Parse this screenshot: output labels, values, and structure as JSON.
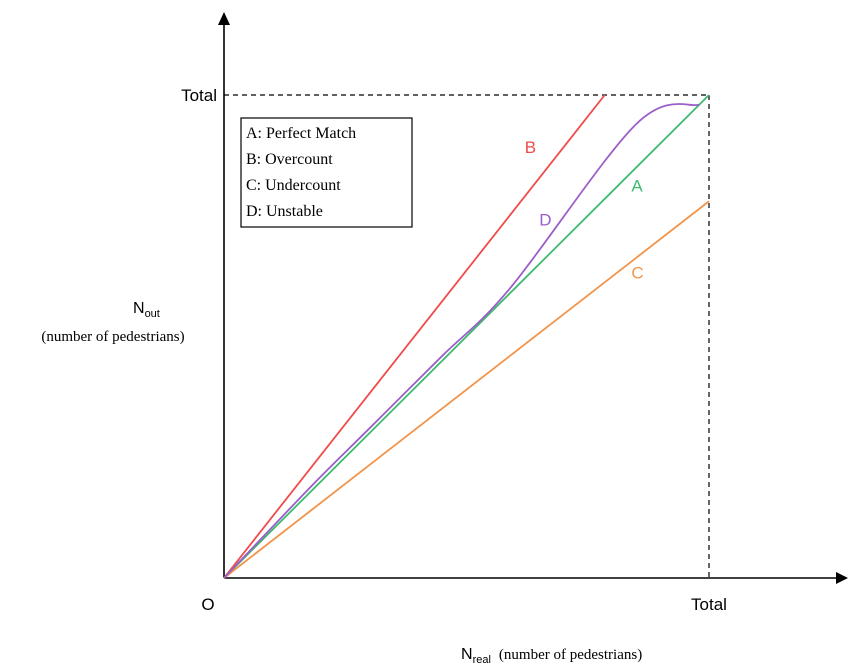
{
  "chart_data": {
    "type": "line",
    "title": "",
    "xlabel": {
      "main": "N",
      "sub": "real",
      "suffix": "(number of pedestrians)"
    },
    "ylabel": {
      "main": "N",
      "sub": "out",
      "suffix": "(number of pedestrians)"
    },
    "origin_label": "O",
    "x_tick_label": "Total",
    "y_tick_label": "Total",
    "xlim": [
      0,
      1.25
    ],
    "ylim": [
      0,
      1.2
    ],
    "grid": false,
    "legend": {
      "placement": "top-left",
      "entries": [
        "A: Perfect Match",
        "B: Overcount",
        "C: Undercount",
        "D: Unstable"
      ]
    },
    "series": [
      {
        "key": "B",
        "label": "B",
        "color": "#f04a4a",
        "x": [
          0,
          0.785
        ],
        "y": [
          0,
          1.0
        ]
      },
      {
        "key": "A",
        "label": "A",
        "color": "#3dbb70",
        "x": [
          0,
          1.0
        ],
        "y": [
          0,
          1.0
        ]
      },
      {
        "key": "C",
        "label": "C",
        "color": "#f2944a",
        "x": [
          0,
          1.0
        ],
        "y": [
          0,
          0.78
        ]
      },
      {
        "key": "D",
        "label": "D",
        "color": "#9a5fc8",
        "x": [
          0,
          0.18,
          0.3,
          0.45,
          0.59,
          0.85,
          0.98
        ],
        "y": [
          0,
          0.19,
          0.31,
          0.46,
          0.6,
          0.94,
          0.98
        ]
      }
    ]
  }
}
